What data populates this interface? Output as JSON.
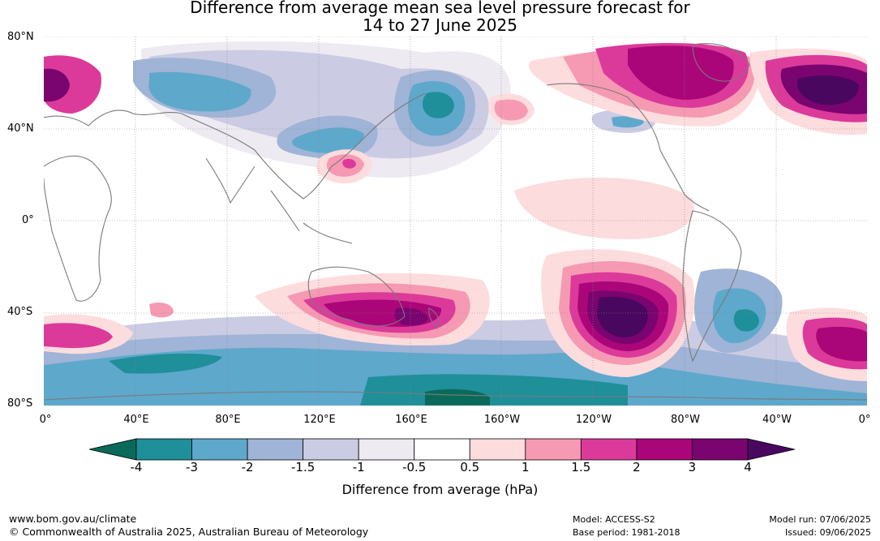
{
  "title_line1": "Difference from average mean sea level pressure forecast for",
  "title_line2": "14 to 27 June 2025",
  "lat_labels": [
    "80°N",
    "40°N",
    "0°",
    "40°S",
    "80°S"
  ],
  "lon_labels": [
    "0°",
    "40°E",
    "80°E",
    "120°E",
    "160°E",
    "160°W",
    "120°W",
    "80°W",
    "40°W",
    "0°"
  ],
  "colorbar": {
    "ticks": [
      "-4",
      "-3",
      "-2",
      "-1.5",
      "-1",
      "-0.5",
      "0.5",
      "1",
      "1.5",
      "2",
      "3",
      "4"
    ],
    "colors": [
      "#0a6a5a",
      "#1f8f99",
      "#5ea8cc",
      "#9fb4d6",
      "#cbcce3",
      "#eeeaf2",
      "#ffffff",
      "#fddcde",
      "#f59ab2",
      "#dc3a9a",
      "#aa0679",
      "#7a0470",
      "#4a0760"
    ],
    "title": "Difference from average (hPa)"
  },
  "footer": {
    "left_line1": "www.bom.gov.au/climate",
    "left_line2": "© Commonwealth of Australia 2025, Australian Bureau of Meteorology",
    "model": "Model: ACCESS-S2",
    "base_period": "Base period: 1981-2018",
    "model_run": "Model run: 07/06/2025",
    "issued": "Issued: 09/06/2025"
  }
}
